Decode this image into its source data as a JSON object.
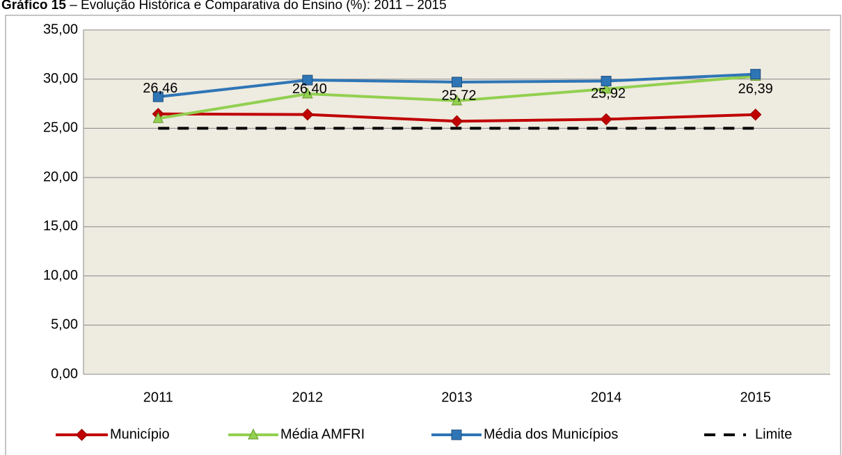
{
  "chart_data": {
    "type": "line",
    "title_prefix": "Gráfico 15",
    "title": " – Evolução Histórica e Comparativa do Ensino (%): 2011 – 2015",
    "categories": [
      "2011",
      "2012",
      "2013",
      "2014",
      "2015"
    ],
    "series": [
      {
        "name": "Município",
        "color": "#c00000",
        "marker": "diamond",
        "values": [
          26.46,
          26.4,
          25.72,
          25.92,
          26.39
        ],
        "value_labels": [
          "26,46",
          "26,40",
          "25,72",
          "25,92",
          "26,39"
        ]
      },
      {
        "name": "Média AMFRI",
        "color": "#92d050",
        "marker": "triangle",
        "values": [
          26.0,
          28.5,
          27.8,
          29.0,
          30.3
        ]
      },
      {
        "name": "Média dos Municípios",
        "color": "#2e75b6",
        "marker": "square",
        "values": [
          28.2,
          29.9,
          29.7,
          29.8,
          30.5
        ]
      },
      {
        "name": "Limite",
        "color": "#000000",
        "marker": "none",
        "dashed": true,
        "values": [
          25,
          25,
          25,
          25,
          25
        ]
      }
    ],
    "ylim": [
      0,
      35
    ],
    "yticks": [
      {
        "value": 0,
        "label": "0,00"
      },
      {
        "value": 5,
        "label": "5,00"
      },
      {
        "value": 10,
        "label": "10,00"
      },
      {
        "value": 15,
        "label": "15,00"
      },
      {
        "value": 20,
        "label": "20,00"
      },
      {
        "value": 25,
        "label": "25,00"
      },
      {
        "value": 30,
        "label": "30,00"
      },
      {
        "value": 35,
        "label": "35,00"
      }
    ],
    "grid": true,
    "legend": "bottom"
  }
}
